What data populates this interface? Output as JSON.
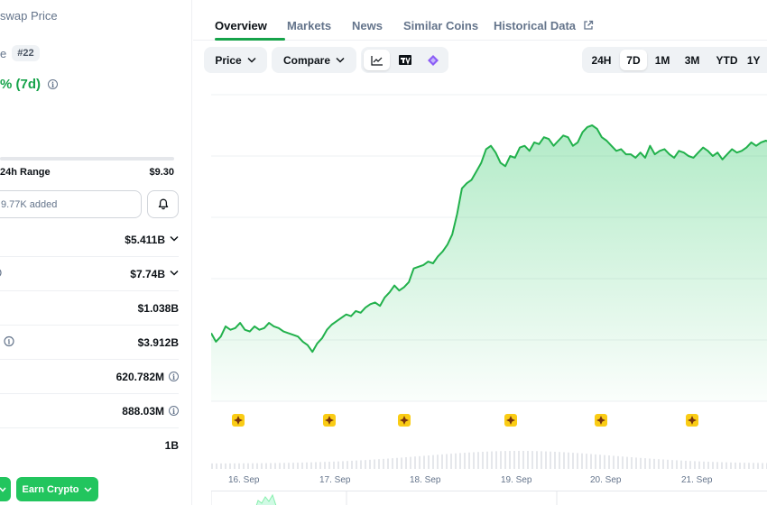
{
  "left": {
    "coin_title": "swap Price",
    "rank_prefix": "e",
    "rank_badge": "#22",
    "price_change": "% (7d)",
    "range_label": "24h Range",
    "range_high": "$9.30",
    "portfolio_text": "9.77K added",
    "stats": [
      {
        "value": "$5.411B",
        "dropdown": true
      },
      {
        "value": "$7.74B",
        "dropdown": true
      },
      {
        "value": "$1.038B"
      },
      {
        "value": "$3.912B"
      },
      {
        "value": "620.782M",
        "info": true
      },
      {
        "value": "888.03M",
        "info": true
      },
      {
        "value": "1B"
      }
    ],
    "earn_label": "Earn Crypto"
  },
  "tabs": [
    {
      "label": "Overview",
      "active": true
    },
    {
      "label": "Markets"
    },
    {
      "label": "News"
    },
    {
      "label": "Similar Coins"
    },
    {
      "label": "Historical Data",
      "external": true
    }
  ],
  "controls": {
    "price_label": "Price",
    "compare_label": "Compare",
    "chart_modes": [
      "line-chart-icon",
      "tradingview-icon",
      "diamond-icon"
    ],
    "ranges": [
      "24H",
      "7D",
      "1M",
      "3M",
      "YTD",
      "1Y"
    ],
    "selected_range": "7D"
  },
  "colors": {
    "accent": "#16a34a",
    "line": "#22b14c",
    "event_marker": "#facc15"
  },
  "chart_data": {
    "type": "area",
    "x_labels": [
      "16. Sep",
      "17. Sep",
      "18. Sep",
      "19. Sep",
      "20. Sep",
      "21. Sep"
    ],
    "y": [
      100,
      95,
      98,
      104,
      102,
      103,
      106,
      102,
      101,
      104,
      102,
      103,
      106,
      104,
      103,
      101,
      100,
      99,
      98,
      95,
      93,
      89,
      94,
      97,
      102,
      105,
      107,
      109,
      111,
      110,
      113,
      112,
      115,
      117,
      118,
      116,
      121,
      124,
      128,
      125,
      127,
      130,
      138,
      139,
      140,
      142,
      141,
      145,
      148,
      152,
      158,
      170,
      185,
      188,
      190,
      195,
      200,
      208,
      210,
      206,
      200,
      198,
      204,
      203,
      209,
      210,
      207,
      212,
      211,
      215,
      214,
      210,
      213,
      216,
      215,
      210,
      212,
      218,
      221,
      222,
      220,
      215,
      213,
      210,
      207,
      208,
      205,
      205,
      203,
      206,
      203,
      210,
      205,
      207,
      208,
      205,
      203,
      207,
      206,
      204,
      203,
      206,
      209,
      207,
      204,
      206,
      202,
      205,
      208,
      206,
      207,
      209,
      212,
      210,
      212,
      213,
      212
    ],
    "event_markers_x_index": [
      16,
      62,
      120,
      183,
      250,
      315
    ],
    "grid": true
  }
}
